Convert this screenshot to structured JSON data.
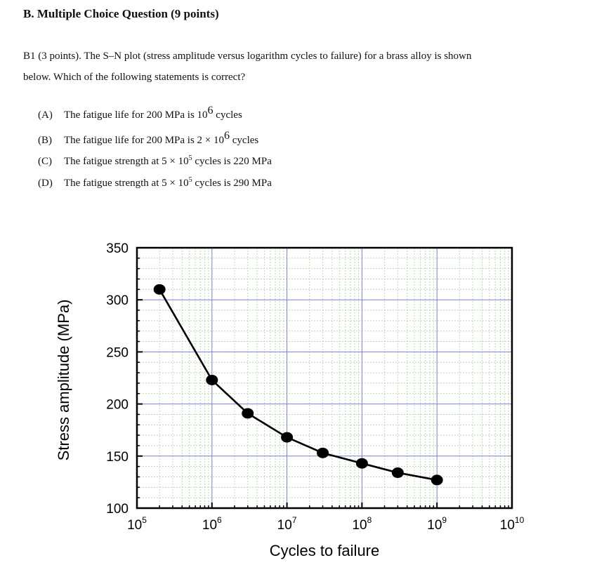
{
  "question": {
    "section_heading": "B. Multiple Choice Question (9 points)",
    "prompt_line1": "B1 (3 points). The S–N plot (stress amplitude versus logarithm cycles to failure) for a brass alloy is shown",
    "prompt_line2": "below. Which of the following statements is correct?",
    "options": [
      {
        "letter": "(A)",
        "pre": "The fatigue life for 200 MPa is 10",
        "sup": "6",
        "post": " cycles"
      },
      {
        "letter": "(B)",
        "pre": "The fatigue life for 200 MPa is 2 × 10",
        "sup": "6",
        "post": " cycles"
      },
      {
        "letter": "(C)",
        "pre": "The fatigue strength at 5 × 10",
        "sup": "5",
        "post": " cycles is 220 MPa"
      },
      {
        "letter": "(D)",
        "pre": "The fatigue strength at 5 × 10",
        "sup": "5",
        "post": " cycles is 290 MPa"
      }
    ]
  },
  "chart_data": {
    "type": "line",
    "title": "",
    "xlabel": "Cycles to failure",
    "ylabel": "Stress amplitude (MPa)",
    "x_scale": "log",
    "xlim": [
      100000,
      10000000000
    ],
    "ylim": [
      100,
      350
    ],
    "x_ticks": [
      {
        "base": "10",
        "exp": "5",
        "value": 100000
      },
      {
        "base": "10",
        "exp": "6",
        "value": 1000000
      },
      {
        "base": "10",
        "exp": "7",
        "value": 10000000
      },
      {
        "base": "10",
        "exp": "8",
        "value": 100000000
      },
      {
        "base": "10",
        "exp": "9",
        "value": 1000000000
      },
      {
        "base": "10",
        "exp": "10",
        "value": 10000000000
      }
    ],
    "y_ticks": [
      "100",
      "150",
      "200",
      "250",
      "300",
      "350"
    ],
    "grid": true,
    "series": [
      {
        "x": [
          200000,
          1000000,
          3000000,
          10000000,
          30000000,
          100000000,
          300000000,
          1000000000
        ],
        "y": [
          310,
          223,
          191,
          168,
          153,
          143,
          134,
          127
        ]
      }
    ],
    "colors": {
      "major_grid": "#7d80d2",
      "minor_grid": "#b9dcb4",
      "line": "#000000"
    }
  }
}
